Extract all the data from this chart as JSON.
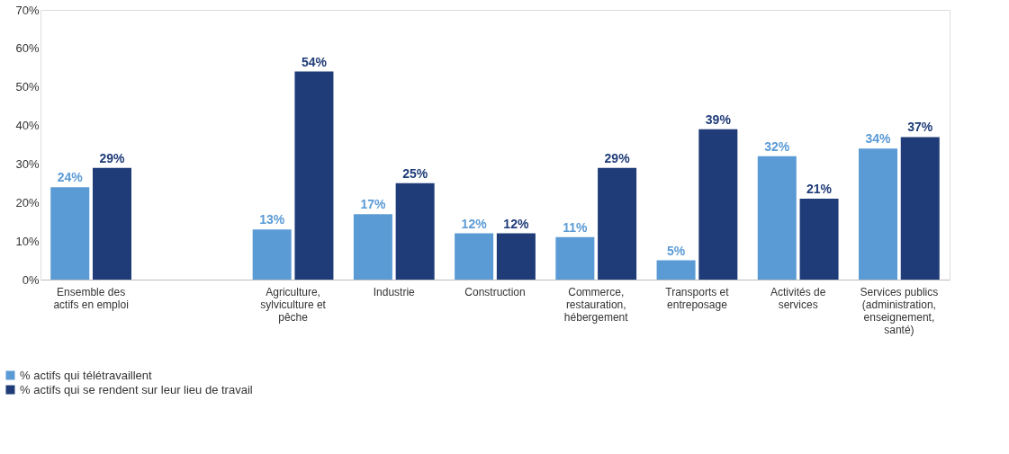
{
  "chart_data": {
    "type": "bar",
    "categories": [
      "Ensemble des\nactifs en emploi",
      null,
      "Agriculture,\nsylviculture et\npêche",
      "Industrie",
      "Construction",
      "Commerce,\nrestauration,\nhébergement",
      "Transports et\nentreposage",
      "Activités de\nservices",
      "Services publics\n(administration,\nenseignement,\nsanté)"
    ],
    "series": [
      {
        "name": "% actifs qui télétravaillent",
        "color": "#5b9bd5",
        "values": [
          24,
          null,
          13,
          17,
          12,
          11,
          5,
          32,
          34
        ],
        "value_labels": [
          "24%",
          null,
          "13%",
          "17%",
          "12%",
          "11%",
          "5%",
          "32%",
          "34%"
        ]
      },
      {
        "name": "% actifs qui se rendent sur leur lieu de travail",
        "color": "#1f3c78",
        "values": [
          29,
          null,
          54,
          25,
          12,
          29,
          39,
          21,
          37
        ],
        "value_labels": [
          "29%",
          null,
          "54%",
          "25%",
          "12%",
          "29%",
          "39%",
          "21%",
          "37%"
        ]
      }
    ],
    "ylim": [
      0,
      70
    ],
    "yticks": [
      {
        "value": 0,
        "label": "0%"
      },
      {
        "value": 10,
        "label": "10%"
      },
      {
        "value": 20,
        "label": "20%"
      },
      {
        "value": 30,
        "label": "30%"
      },
      {
        "value": 40,
        "label": "40%"
      },
      {
        "value": 50,
        "label": "50%"
      },
      {
        "value": 60,
        "label": "60%"
      },
      {
        "value": 70,
        "label": "70%"
      }
    ],
    "grid": false,
    "legend": "bottom left"
  }
}
